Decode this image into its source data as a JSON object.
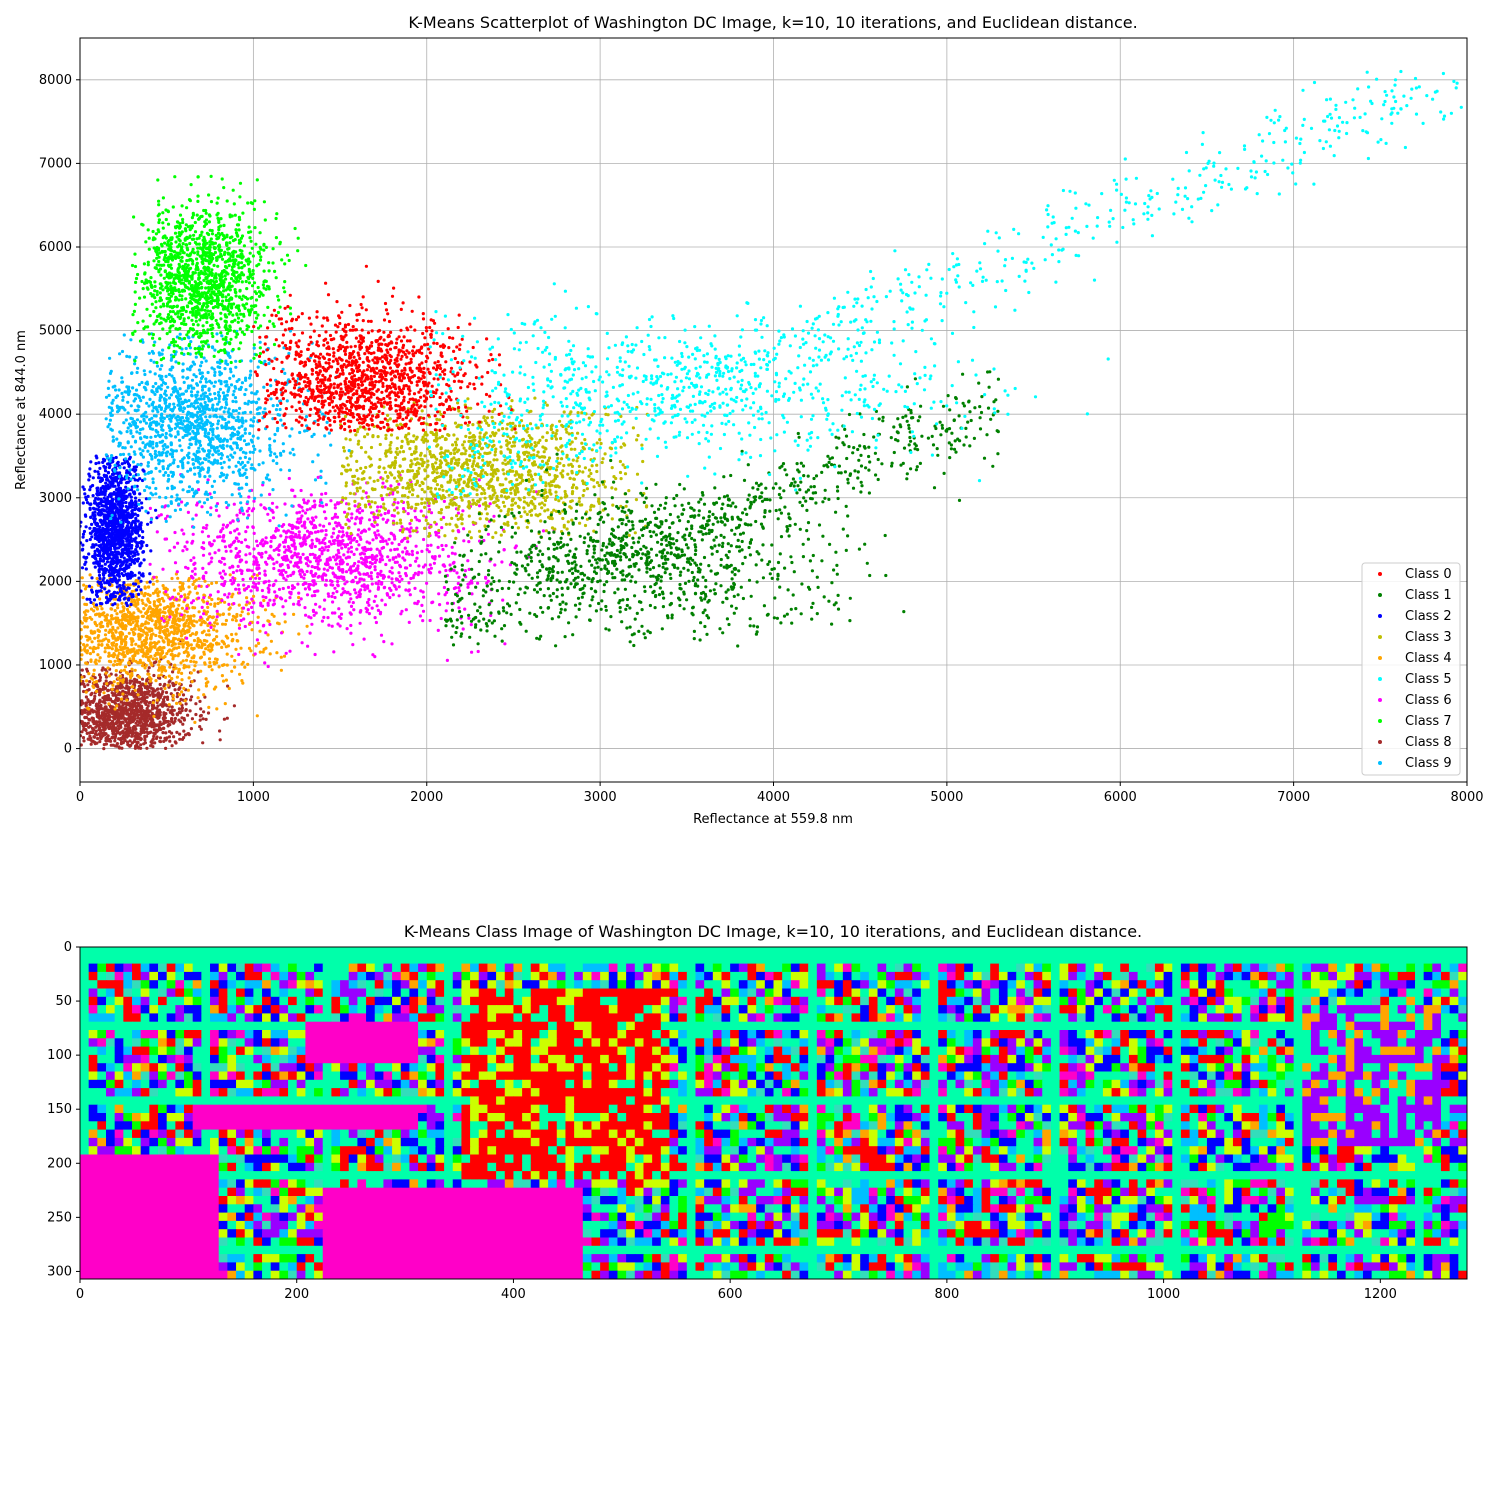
{
  "chart_data": [
    {
      "type": "scatter",
      "title": "K-Means Scatterplot of Washington DC Image, k=10, 10 iterations, and Euclidean distance.",
      "xlabel": "Reflectance at 559.8 nm",
      "ylabel": "Reflectance at 844.0 nm",
      "xlim": [
        0,
        8000
      ],
      "ylim": [
        -400,
        8500
      ],
      "xticks": [
        0,
        1000,
        2000,
        3000,
        4000,
        5000,
        6000,
        7000,
        8000
      ],
      "yticks": [
        0,
        1000,
        2000,
        3000,
        4000,
        5000,
        6000,
        7000,
        8000
      ],
      "grid": true,
      "legend_position": "lower-right",
      "series": [
        {
          "name": "Class 0",
          "color": "#ff0000",
          "cluster": {
            "center": [
              1650,
              4350
            ],
            "spread": [
              320,
              420
            ],
            "extent_x": [
              1000,
              2700
            ],
            "extent_y": [
              3800,
              6300
            ]
          }
        },
        {
          "name": "Class 1",
          "color": "#008000",
          "cluster": {
            "center": [
              3300,
              2200
            ],
            "spread": [
              550,
              450
            ],
            "extent_x": [
              2100,
              5300
            ],
            "extent_y": [
              1200,
              5000
            ]
          }
        },
        {
          "name": "Class 2",
          "color": "#0000ff",
          "cluster": {
            "center": [
              200,
              2600
            ],
            "spread": [
              80,
              450
            ],
            "extent_x": [
              0,
              450
            ],
            "extent_y": [
              1700,
              3500
            ]
          }
        },
        {
          "name": "Class 3",
          "color": "#bfbf00",
          "cluster": {
            "center": [
              2300,
              3300
            ],
            "spread": [
              450,
              400
            ],
            "extent_x": [
              1500,
              3300
            ],
            "extent_y": [
              2500,
              4200
            ]
          }
        },
        {
          "name": "Class 4",
          "color": "#ffa500",
          "cluster": {
            "center": [
              400,
              1400
            ],
            "spread": [
              300,
              350
            ],
            "extent_x": [
              0,
              3000
            ],
            "extent_y": [
              200,
              2100
            ]
          }
        },
        {
          "name": "Class 5",
          "color": "#00ffff",
          "cluster": {
            "center": [
              3400,
              4300
            ],
            "spread": [
              900,
              450
            ],
            "extent_x": [
              2000,
              8000
            ],
            "extent_y": [
              3000,
              8100
            ]
          }
        },
        {
          "name": "Class 6",
          "color": "#ff00ff",
          "cluster": {
            "center": [
              1400,
              2300
            ],
            "spread": [
              450,
              420
            ],
            "extent_x": [
              400,
              2900
            ],
            "extent_y": [
              900,
              3300
            ]
          }
        },
        {
          "name": "Class 7",
          "color": "#00ff00",
          "cluster": {
            "center": [
              700,
              5600
            ],
            "spread": [
              200,
              450
            ],
            "extent_x": [
              300,
              2500
            ],
            "extent_y": [
              4600,
              6900
            ]
          }
        },
        {
          "name": "Class 8",
          "color": "#a52a2a",
          "cluster": {
            "center": [
              250,
              400
            ],
            "spread": [
              200,
              260
            ],
            "extent_x": [
              0,
              1300
            ],
            "extent_y": [
              0,
              1300
            ]
          }
        },
        {
          "name": "Class 9",
          "color": "#00bfff",
          "cluster": {
            "center": [
              650,
              3900
            ],
            "spread": [
              300,
              500
            ],
            "extent_x": [
              150,
              1800
            ],
            "extent_y": [
              2600,
              5000
            ]
          }
        }
      ]
    },
    {
      "type": "heatmap",
      "title": "K-Means Class Image of Washington DC Image, k=10, 10 iterations, and Euclidean distance.",
      "xlim": [
        0,
        1280
      ],
      "ylim": [
        307,
        0
      ],
      "xticks": [
        0,
        200,
        400,
        600,
        800,
        1000,
        1200
      ],
      "yticks": [
        0,
        50,
        100,
        150,
        200,
        250,
        300
      ],
      "palette": [
        "#ff0000",
        "#ff00c8",
        "#9900ff",
        "#0000ff",
        "#00bfff",
        "#00ffaa",
        "#00ff00",
        "#ccff00",
        "#ffa500",
        "#33ddbb"
      ]
    }
  ]
}
